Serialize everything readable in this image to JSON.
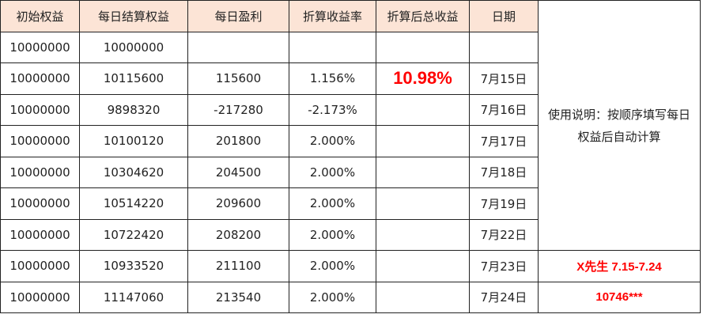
{
  "headers": [
    "初始权益",
    "每日结算权益",
    "每日盈利",
    "折算收益率",
    "折算后总收益",
    "日期"
  ],
  "rows": [
    [
      "10000000",
      "10000000",
      "",
      "",
      "",
      ""
    ],
    [
      "10000000",
      "10115600",
      "115600",
      "1.156%",
      "10.98%",
      "7月15日"
    ],
    [
      "10000000",
      "9898320",
      "-217280",
      "-2.173%",
      "",
      "7月16日"
    ],
    [
      "10000000",
      "10100120",
      "201800",
      "2.000%",
      "",
      "7月17日"
    ],
    [
      "10000000",
      "10304620",
      "204500",
      "2.000%",
      "",
      "7月18日"
    ],
    [
      "10000000",
      "10514220",
      "209600",
      "2.000%",
      "",
      "7月19日"
    ],
    [
      "10000000",
      "10722420",
      "208200",
      "2.000%",
      "",
      "7月22日"
    ],
    [
      "10000000",
      "10933520",
      "211100",
      "2.000%",
      "",
      "7月23日"
    ],
    [
      "10000000",
      "11147060",
      "213540",
      "2.000%",
      "",
      "7月24日"
    ]
  ],
  "note": "使用说明：按顺序填写每日权益后自动计算",
  "owner": "X先生 7.15-7.24",
  "account": "10746***",
  "colors": {
    "header_bg": "#fce4d6",
    "highlight": "#ff0000"
  }
}
